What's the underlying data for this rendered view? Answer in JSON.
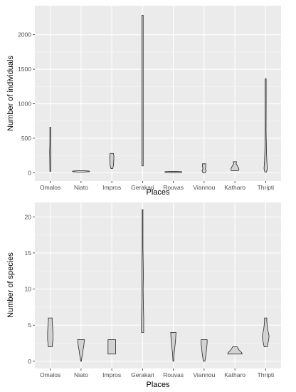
{
  "chart_data": [
    {
      "type": "violin",
      "xlabel": "Places",
      "ylabel": "Number of individuals",
      "categories": [
        "Omalos",
        "Niato",
        "Impros",
        "Gerakari",
        "Rouvas",
        "Viannou",
        "Katharo",
        "Thripti"
      ],
      "ylim": [
        -120,
        2420
      ],
      "yticks": [
        0,
        500,
        1000,
        1500,
        2000
      ],
      "ytick_labels": [
        "0",
        "500",
        "1000",
        "1500",
        "2000"
      ],
      "grid": true,
      "fill_color": "#d3d3d3",
      "panel_color": "#ebebeb",
      "distributions": [
        {
          "name": "Omalos",
          "profile": [
            [
              20,
              0.5
            ],
            [
              100,
              1
            ],
            [
              200,
              1.2
            ],
            [
              300,
              1.5
            ],
            [
              400,
              1
            ],
            [
              500,
              0.6
            ],
            [
              660,
              0.3
            ]
          ]
        },
        {
          "name": "Niato",
          "profile": [
            [
              10,
              6
            ],
            [
              15,
              20
            ],
            [
              20,
              22
            ],
            [
              25,
              20
            ],
            [
              30,
              6
            ]
          ]
        },
        {
          "name": "Impros",
          "profile": [
            [
              60,
              2
            ],
            [
              100,
              4
            ],
            [
              150,
              4.5
            ],
            [
              200,
              5
            ],
            [
              250,
              5
            ],
            [
              280,
              4
            ]
          ]
        },
        {
          "name": "Gerakari",
          "profile": [
            [
              100,
              1.5
            ],
            [
              600,
              1.5
            ],
            [
              1200,
              1.5
            ],
            [
              1800,
              1.5
            ],
            [
              2280,
              1.5
            ]
          ]
        },
        {
          "name": "Rouvas",
          "profile": [
            [
              0,
              4
            ],
            [
              5,
              20
            ],
            [
              10,
              28
            ],
            [
              15,
              20
            ],
            [
              20,
              4
            ]
          ]
        },
        {
          "name": "Viannou",
          "profile": [
            [
              0,
              3
            ],
            [
              30,
              5
            ],
            [
              60,
              3
            ],
            [
              90,
              4
            ],
            [
              130,
              4
            ]
          ]
        },
        {
          "name": "Katharo",
          "profile": [
            [
              30,
              8
            ],
            [
              50,
              10
            ],
            [
              80,
              8
            ],
            [
              110,
              5
            ],
            [
              130,
              3
            ],
            [
              160,
              4
            ]
          ]
        },
        {
          "name": "Thripti",
          "profile": [
            [
              10,
              2
            ],
            [
              60,
              4
            ],
            [
              150,
              3
            ],
            [
              300,
              2
            ],
            [
              600,
              1
            ],
            [
              1000,
              1.2
            ],
            [
              1360,
              1.2
            ]
          ]
        }
      ]
    },
    {
      "type": "violin",
      "xlabel": "Places",
      "ylabel": "Number of species",
      "categories": [
        "Omalos",
        "Niato",
        "Impros",
        "Gerakari",
        "Rouvas",
        "Viannou",
        "Katharo",
        "Thripti"
      ],
      "ylim": [
        -1,
        22
      ],
      "yticks": [
        0,
        5,
        10,
        15,
        20
      ],
      "ytick_labels": [
        "0",
        "5",
        "10",
        "15",
        "20"
      ],
      "grid": true,
      "fill_color": "#d3d3d3",
      "panel_color": "#ebebeb",
      "distributions": [
        {
          "name": "Omalos",
          "profile": [
            [
              2,
              5
            ],
            [
              2.5,
              6
            ],
            [
              3,
              7
            ],
            [
              4,
              7
            ],
            [
              5,
              6
            ],
            [
              5.5,
              5
            ],
            [
              6,
              5
            ]
          ]
        },
        {
          "name": "Niato",
          "profile": [
            [
              0,
              1
            ],
            [
              0.5,
              2
            ],
            [
              1,
              4
            ],
            [
              1.5,
              5
            ],
            [
              2,
              7
            ],
            [
              2.5,
              8
            ],
            [
              3,
              9
            ]
          ]
        },
        {
          "name": "Impros",
          "profile": [
            [
              1,
              10
            ],
            [
              1.5,
              10
            ],
            [
              2,
              10
            ],
            [
              2.5,
              10
            ],
            [
              3,
              10
            ]
          ]
        },
        {
          "name": "Gerakari",
          "profile": [
            [
              4,
              3
            ],
            [
              6,
              3
            ],
            [
              8,
              2
            ],
            [
              10,
              1.5
            ],
            [
              12,
              2
            ],
            [
              14,
              1.5
            ],
            [
              16,
              1
            ],
            [
              18,
              1
            ],
            [
              19,
              1
            ],
            [
              21,
              1
            ]
          ]
        },
        {
          "name": "Rouvas",
          "profile": [
            [
              0,
              1
            ],
            [
              1,
              2
            ],
            [
              2,
              4
            ],
            [
              3,
              6
            ],
            [
              4,
              7
            ]
          ]
        },
        {
          "name": "Viannou",
          "profile": [
            [
              0,
              2
            ],
            [
              1,
              5
            ],
            [
              2,
              7
            ],
            [
              2.5,
              8
            ],
            [
              3,
              8
            ]
          ]
        },
        {
          "name": "Katharo",
          "profile": [
            [
              1,
              19
            ],
            [
              1.2,
              18
            ],
            [
              1.5,
              12
            ],
            [
              1.8,
              8
            ],
            [
              2,
              6
            ]
          ]
        },
        {
          "name": "Thripti",
          "profile": [
            [
              2,
              4
            ],
            [
              2.5,
              6
            ],
            [
              3,
              8
            ],
            [
              3.5,
              9
            ],
            [
              4,
              7
            ],
            [
              4.5,
              5
            ],
            [
              5,
              4
            ],
            [
              5.5,
              3
            ],
            [
              6,
              3
            ]
          ]
        }
      ]
    }
  ]
}
